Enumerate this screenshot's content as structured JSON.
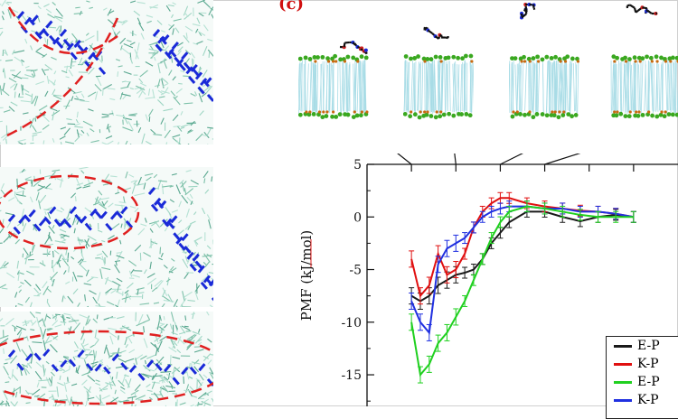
{
  "figure": {
    "panel_label": "(c)"
  },
  "chart_data": {
    "type": "line",
    "xlabel": "",
    "ylabel": "PMF (kJ/mol)",
    "ylim": [
      -18,
      5
    ],
    "yticks": [
      5,
      0,
      -5,
      -10,
      -15
    ],
    "grid": false,
    "legend_position": "bottom-right",
    "series": [
      {
        "name": "E-P",
        "color": "#1a1a1a",
        "x": [
          0.5,
          0.6,
          0.7,
          0.8,
          0.9,
          1.0,
          1.1,
          1.2,
          1.3,
          1.4,
          1.5,
          1.6,
          1.8,
          2.0,
          2.2,
          2.4,
          2.6,
          2.8,
          3.0
        ],
        "y": [
          -7.5,
          -8.0,
          -7.5,
          -6.5,
          -6.0,
          -5.5,
          -5.3,
          -5.0,
          -4.0,
          -2.5,
          -1.5,
          -0.5,
          0.5,
          0.5,
          0.0,
          -0.4,
          0.0,
          0.2,
          0.0
        ]
      },
      {
        "name": "K-P",
        "color": "#e01010",
        "x": [
          0.5,
          0.6,
          0.7,
          0.8,
          0.9,
          1.0,
          1.1,
          1.2,
          1.3,
          1.4,
          1.5,
          1.6,
          1.8,
          2.0,
          2.2,
          2.4,
          2.6,
          2.8,
          3.0
        ],
        "y": [
          -4.0,
          -7.5,
          -6.5,
          -3.5,
          -5.5,
          -5.0,
          -3.5,
          -1.0,
          0.5,
          1.3,
          1.8,
          1.8,
          1.3,
          1.0,
          0.8,
          0.6,
          0.5,
          0.3,
          0.0
        ]
      },
      {
        "name": "K-P",
        "color": "#2030e0",
        "x": [
          0.5,
          0.6,
          0.7,
          0.8,
          0.9,
          1.0,
          1.1,
          1.2,
          1.3,
          1.4,
          1.5,
          1.6,
          1.8,
          2.0,
          2.2,
          2.4,
          2.6,
          2.8,
          3.0
        ],
        "y": [
          -8.0,
          -10.0,
          -11.0,
          -4.5,
          -3.0,
          -2.5,
          -2.0,
          -1.0,
          0.0,
          0.5,
          0.8,
          1.0,
          1.0,
          0.8,
          0.8,
          0.5,
          0.5,
          0.3,
          0.0
        ]
      },
      {
        "name": "E-P",
        "color": "#20d020",
        "x": [
          0.5,
          0.6,
          0.7,
          0.8,
          0.9,
          1.0,
          1.1,
          1.2,
          1.3,
          1.4,
          1.5,
          1.6,
          1.8,
          2.0,
          2.2,
          2.4,
          2.6,
          2.8,
          3.0
        ],
        "y": [
          -10.0,
          -15.0,
          -14.0,
          -12.0,
          -11.0,
          -9.5,
          -8.0,
          -6.0,
          -4.0,
          -2.0,
          -0.5,
          0.5,
          1.0,
          0.8,
          0.5,
          0.2,
          0.0,
          0.0,
          0.0
        ]
      }
    ]
  },
  "legend": {
    "entries": [
      {
        "label": "E-P",
        "color": "#1a1a1a"
      },
      {
        "label": "K-P",
        "color": "#e01010"
      },
      {
        "label": "E-P",
        "color": "#20d020"
      },
      {
        "label": "K-P",
        "color": "#2030e0"
      }
    ]
  },
  "colors": {
    "annotation_red": "#e02020",
    "peptide_blue": "#1a2ad8",
    "lipid_green": "#7cc0a8",
    "headgroup_green": "#3aa820",
    "headgroup_orange": "#c86a10"
  }
}
